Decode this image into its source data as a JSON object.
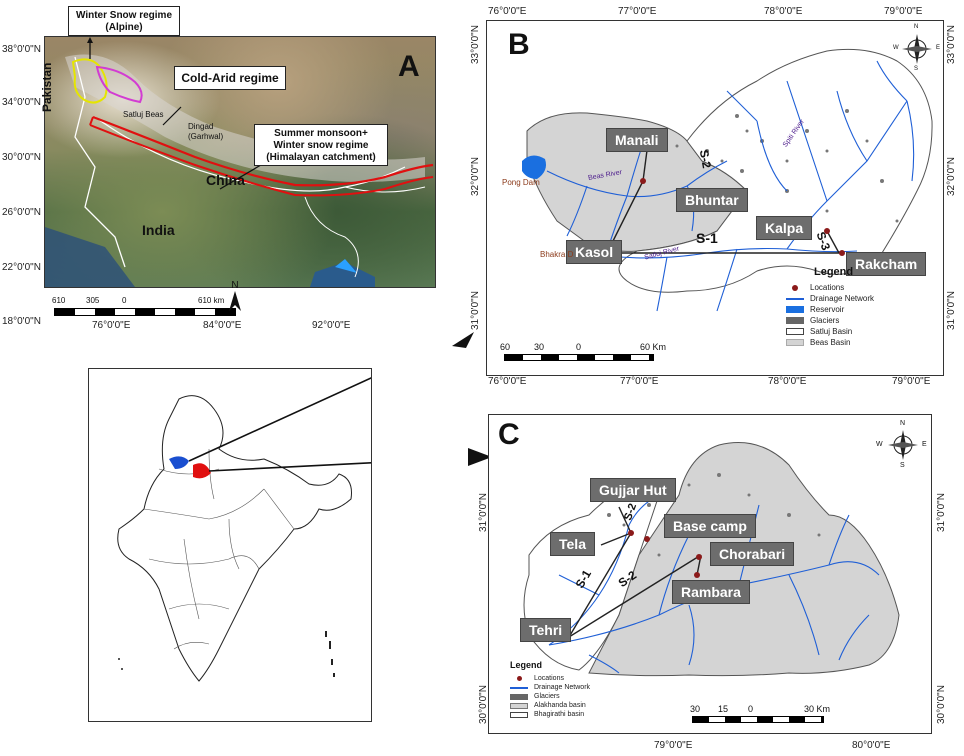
{
  "panel_a": {
    "letter": "A",
    "callouts": {
      "alpine_title": "Winter Snow regime",
      "alpine_sub": "(Alpine)",
      "cold_arid": "Cold-Arid regime",
      "monsoon_1": "Summer monsoon+",
      "monsoon_2": "Winter snow regime",
      "monsoon_3": "(Himalayan catchment)"
    },
    "place_labels": {
      "pakistan": "Pakistan",
      "china": "China",
      "india": "India",
      "satluj_beas": "Satluj Beas",
      "dingad_1": "Dingad",
      "dingad_2": "(Garhwal)"
    },
    "lat_labels": [
      "38°0'0\"N",
      "34°0'0\"N",
      "30°0'0\"N",
      "26°0'0\"N",
      "22°0'0\"N",
      "18°0'0\"N"
    ],
    "lon_labels": [
      "76°0'0\"E",
      "84°0'0\"E",
      "92°0'0\"E"
    ],
    "scale": [
      "610",
      "305",
      "0",
      "610 km"
    ],
    "north": "N"
  },
  "panel_b": {
    "letter": "B",
    "lon_labels": [
      "76°0'0\"E",
      "77°0'0\"E",
      "78°0'0\"E",
      "79°0'0\"E"
    ],
    "lat_left": [
      "33°0'0\"N",
      "32°0'0\"N",
      "31°0'0\"N"
    ],
    "lat_right": [
      "33°0'0\"N",
      "32°0'0\"N",
      "31°0'0\"N"
    ],
    "stations": {
      "manali": "Manali",
      "bhuntar": "Bhuntar",
      "kasol": "Kasol",
      "kalpa": "Kalpa",
      "rakcham": "Rakcham"
    },
    "small_labels": {
      "pong_dam": "Pong Dam",
      "bhakra": "Bhakra D",
      "beas_river": "Beas River",
      "satluj_river": "Satluj River",
      "spiti_river": "Spiti River"
    },
    "links": {
      "s1": "S-1",
      "s2": "S-2",
      "s3": "S-3"
    },
    "legend": {
      "title": "Legend",
      "items": [
        "Locations",
        "Drainage Network",
        "Reservoir",
        "Glaciers",
        "Satluj Basin",
        "Beas Basin"
      ]
    },
    "scale": [
      "60",
      "30",
      "0",
      "60 Km"
    ],
    "compass": {
      "n": "N",
      "s": "S",
      "e": "E",
      "w": "W"
    }
  },
  "panel_c": {
    "letter": "C",
    "lon_labels": [
      "79°0'0\"E",
      "80°0'0\"E"
    ],
    "lat_left": [
      "31°0'0\"N",
      "30°0'0\"N"
    ],
    "lat_right": [
      "31°0'0\"N",
      "30°0'0\"N"
    ],
    "stations": {
      "gujjar_hut": "Gujjar Hut",
      "base_camp": "Base camp",
      "tela": "Tela",
      "chorabari": "Chorabari",
      "rambara": "Rambara",
      "tehri": "Tehri"
    },
    "links": {
      "s1": "S-1",
      "s2a": "S-2",
      "s2b": "S-2"
    },
    "legend": {
      "title": "Legend",
      "items": [
        "Locations",
        "Drainage Network",
        "Glaciers",
        "Alakhanda basin",
        "Bhagirathi basin"
      ]
    },
    "scale": [
      "30",
      "15",
      "0",
      "30 Km"
    ],
    "compass": {
      "n": "N",
      "s": "S",
      "e": "E",
      "w": "W"
    }
  },
  "colors": {
    "river": "#1f5fd6",
    "basin": "#d4d4d4",
    "station_box": "#6d6d6d",
    "marker": "#8b1a1a",
    "alpine_line": "#e5e500",
    "cold_arid_line": "#d23cd2",
    "monsoon_line": "#e01010",
    "reservoir": "#1a6fe0"
  }
}
